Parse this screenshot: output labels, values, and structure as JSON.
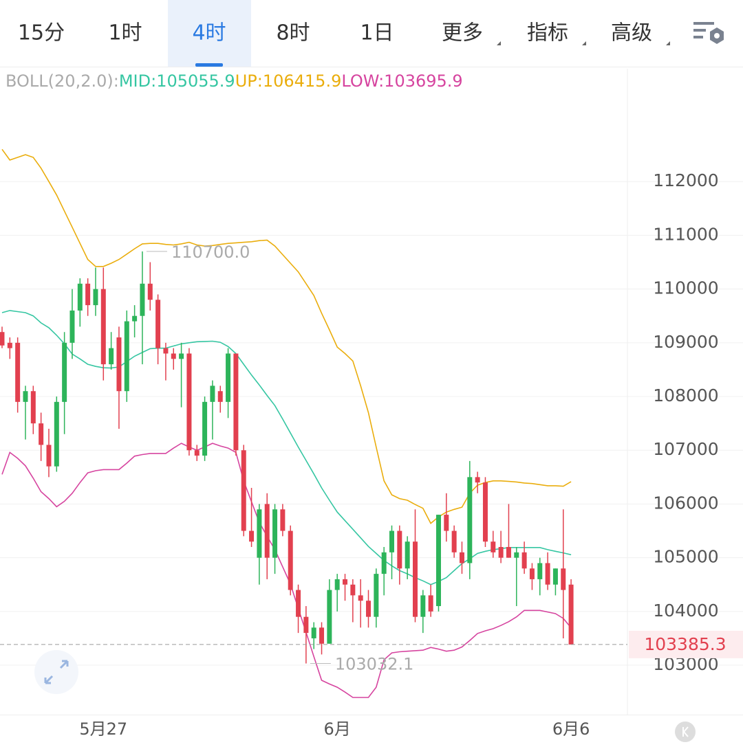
{
  "tabs": [
    "15分",
    "1时",
    "4时",
    "8时",
    "1日",
    "更多",
    "指标",
    "高级"
  ],
  "selected_tab": 2,
  "dropdown_tabs": [
    5,
    6,
    7
  ],
  "chart_data": {
    "type": "candlestick",
    "indicator": "BOLL(20,2.0):",
    "categories": [
      null,
      null,
      null,
      null,
      null,
      null,
      null,
      null,
      null,
      null,
      null,
      null,
      null,
      "5月27",
      null,
      null,
      null,
      null,
      null,
      null,
      null,
      null,
      null,
      null,
      null,
      null,
      null,
      null,
      null,
      null,
      null,
      null,
      null,
      null,
      null,
      null,
      null,
      null,
      null,
      null,
      null,
      null,
      null,
      "6月",
      null,
      null,
      null,
      null,
      null,
      null,
      null,
      null,
      null,
      null,
      null,
      null,
      null,
      null,
      null,
      null,
      null,
      null,
      null,
      null,
      null,
      null,
      null,
      null,
      null,
      null,
      null,
      null,
      null,
      "6月6"
    ],
    "open": [
      109200,
      109000,
      109000,
      107900,
      108100,
      107500,
      107100,
      106700,
      107900,
      109000,
      109600,
      110100,
      109700,
      110000,
      108600,
      109100,
      108100,
      109400,
      109500,
      110100,
      109800,
      108900,
      108800,
      108700,
      108800,
      107000,
      106900,
      107900,
      108100,
      107900,
      108800,
      107000,
      105500,
      105000,
      106000,
      105000,
      105900,
      105500,
      104400,
      103900,
      103500,
      103700,
      103400,
      104400,
      104600,
      104500,
      104300,
      104200,
      103900,
      104700,
      105100,
      105500,
      104800,
      105300,
      103900,
      104300,
      104100,
      105800,
      105500,
      105100,
      104900,
      106500,
      106400,
      105300,
      105200,
      105200,
      105000,
      105100,
      104800,
      104600,
      104900,
      104500,
      104800,
      104500
    ],
    "high": [
      109300,
      109100,
      109100,
      108200,
      108200,
      107700,
      107400,
      108000,
      109200,
      110000,
      110200,
      110200,
      110400,
      110400,
      109200,
      109300,
      109600,
      109700,
      110700,
      110500,
      109900,
      109000,
      108900,
      109000,
      108900,
      107100,
      108000,
      108300,
      108200,
      108900,
      108800,
      107100,
      106300,
      106000,
      106200,
      106000,
      106000,
      105600,
      104500,
      104100,
      103800,
      103800,
      104600,
      104700,
      104700,
      104600,
      104600,
      104400,
      104800,
      105200,
      105600,
      105600,
      105400,
      105900,
      104400,
      104500,
      105800,
      106200,
      105600,
      105300,
      106800,
      106600,
      106500,
      105500,
      105500,
      106000,
      105200,
      105300,
      104900,
      105000,
      105100,
      104800,
      105900,
      104600
    ],
    "low": [
      108900,
      108700,
      107700,
      107200,
      107300,
      106800,
      106500,
      106600,
      107300,
      108700,
      109300,
      109500,
      109500,
      108300,
      108500,
      107400,
      107900,
      109100,
      108600,
      109600,
      108600,
      108300,
      108500,
      107800,
      106900,
      106800,
      106800,
      107200,
      107700,
      107600,
      106900,
      105400,
      105200,
      104500,
      104600,
      104700,
      105400,
      104300,
      103600,
      103032.1,
      103300,
      103200,
      103400,
      104000,
      104200,
      103800,
      103700,
      103700,
      103700,
      104300,
      104600,
      104500,
      104600,
      103800,
      103600,
      103900,
      104000,
      105300,
      105000,
      104700,
      104600,
      106200,
      105200,
      105000,
      104900,
      105000,
      104100,
      104700,
      104400,
      104300,
      104400,
      104300,
      103500,
      103385.3
    ],
    "close": [
      108950,
      108900,
      107900,
      108100,
      107500,
      107100,
      106700,
      107900,
      109000,
      109600,
      110100,
      109700,
      110000,
      108600,
      108900,
      108100,
      109400,
      109500,
      110100,
      109800,
      108900,
      108800,
      108700,
      108800,
      107000,
      106900,
      107900,
      108200,
      107900,
      108800,
      107000,
      105500,
      105300,
      105900,
      105000,
      105900,
      105500,
      104400,
      103900,
      103600,
      103700,
      103400,
      104400,
      104600,
      104500,
      104300,
      104200,
      103900,
      104700,
      105100,
      105500,
      104800,
      105300,
      103900,
      104300,
      104000,
      105800,
      105500,
      105100,
      104900,
      106500,
      106400,
      105300,
      105100,
      105000,
      105000,
      105100,
      104800,
      104600,
      104900,
      104500,
      104800,
      104400,
      103385.3
    ],
    "up_color": "#2db45a",
    "down_color": "#e2404f",
    "series": [
      {
        "name": "MID:",
        "color": "#35c6a2",
        "values": [
          109560,
          109600,
          109580,
          109560,
          109500,
          109370,
          109280,
          109140,
          108980,
          108790,
          108700,
          108600,
          108560,
          108535,
          108530,
          108550,
          108650,
          108750,
          108820,
          108890,
          108900,
          108900,
          108940,
          108980,
          109000,
          109020,
          109025,
          109030,
          109010,
          108930,
          108800,
          108600,
          108400,
          108215,
          108020,
          107830,
          107580,
          107320,
          107060,
          106810,
          106560,
          106300,
          106070,
          105850,
          105690,
          105530,
          105370,
          105210,
          105080,
          104950,
          104850,
          104760,
          104700,
          104630,
          104570,
          104500,
          104560,
          104630,
          104760,
          104890,
          104980,
          105080,
          105120,
          105150,
          105170,
          105190,
          105190,
          105190,
          105190,
          105190,
          105150,
          105120,
          105090,
          105055.9
        ]
      },
      {
        "name": "UP:",
        "color": "#eaad0c",
        "values": [
          112600,
          112400,
          112450,
          112500,
          112450,
          112250,
          112000,
          111750,
          111450,
          111150,
          110850,
          110550,
          110420,
          110420,
          110480,
          110550,
          110650,
          110750,
          110840,
          110850,
          110850,
          110830,
          110820,
          110840,
          110870,
          110820,
          110800,
          110810,
          110830,
          110850,
          110860,
          110870,
          110880,
          110900,
          110910,
          110800,
          110640,
          110480,
          110320,
          110100,
          109880,
          109550,
          109240,
          108920,
          108800,
          108660,
          108200,
          107700,
          107060,
          106430,
          106170,
          106100,
          106070,
          105990,
          105920,
          105640,
          105760,
          105850,
          105900,
          105940,
          106200,
          106350,
          106400,
          106430,
          106430,
          106420,
          106410,
          106390,
          106380,
          106360,
          106340,
          106340,
          106330,
          106415.9
        ]
      },
      {
        "name": "LOW:",
        "color": "#d6449f",
        "values": [
          106550,
          106960,
          106850,
          106710,
          106480,
          106230,
          106100,
          105950,
          106050,
          106200,
          106400,
          106580,
          106620,
          106640,
          106640,
          106640,
          106760,
          106890,
          106920,
          106940,
          106940,
          106940,
          107040,
          107130,
          107060,
          107000,
          107060,
          107130,
          107080,
          107040,
          106960,
          106430,
          106040,
          105660,
          105400,
          105150,
          104830,
          104510,
          104060,
          103610,
          103160,
          102720,
          102650,
          102590,
          102500,
          102400,
          102400,
          102400,
          102590,
          103100,
          103230,
          103250,
          103260,
          103270,
          103280,
          103330,
          103300,
          103260,
          103280,
          103340,
          103460,
          103590,
          103640,
          103680,
          103740,
          103810,
          103900,
          104020,
          104020,
          104020,
          103990,
          103960,
          103870,
          103695.9
        ]
      }
    ],
    "max_label": {
      "value": 110700,
      "label": "110700.0"
    },
    "min_label": 103032.1,
    "ylim": [
      102080,
      114100
    ],
    "yticks": [
      103000,
      104000,
      105000,
      106000,
      107000,
      108000,
      109000,
      110000,
      111000,
      112000
    ],
    "grid": true
  }
}
